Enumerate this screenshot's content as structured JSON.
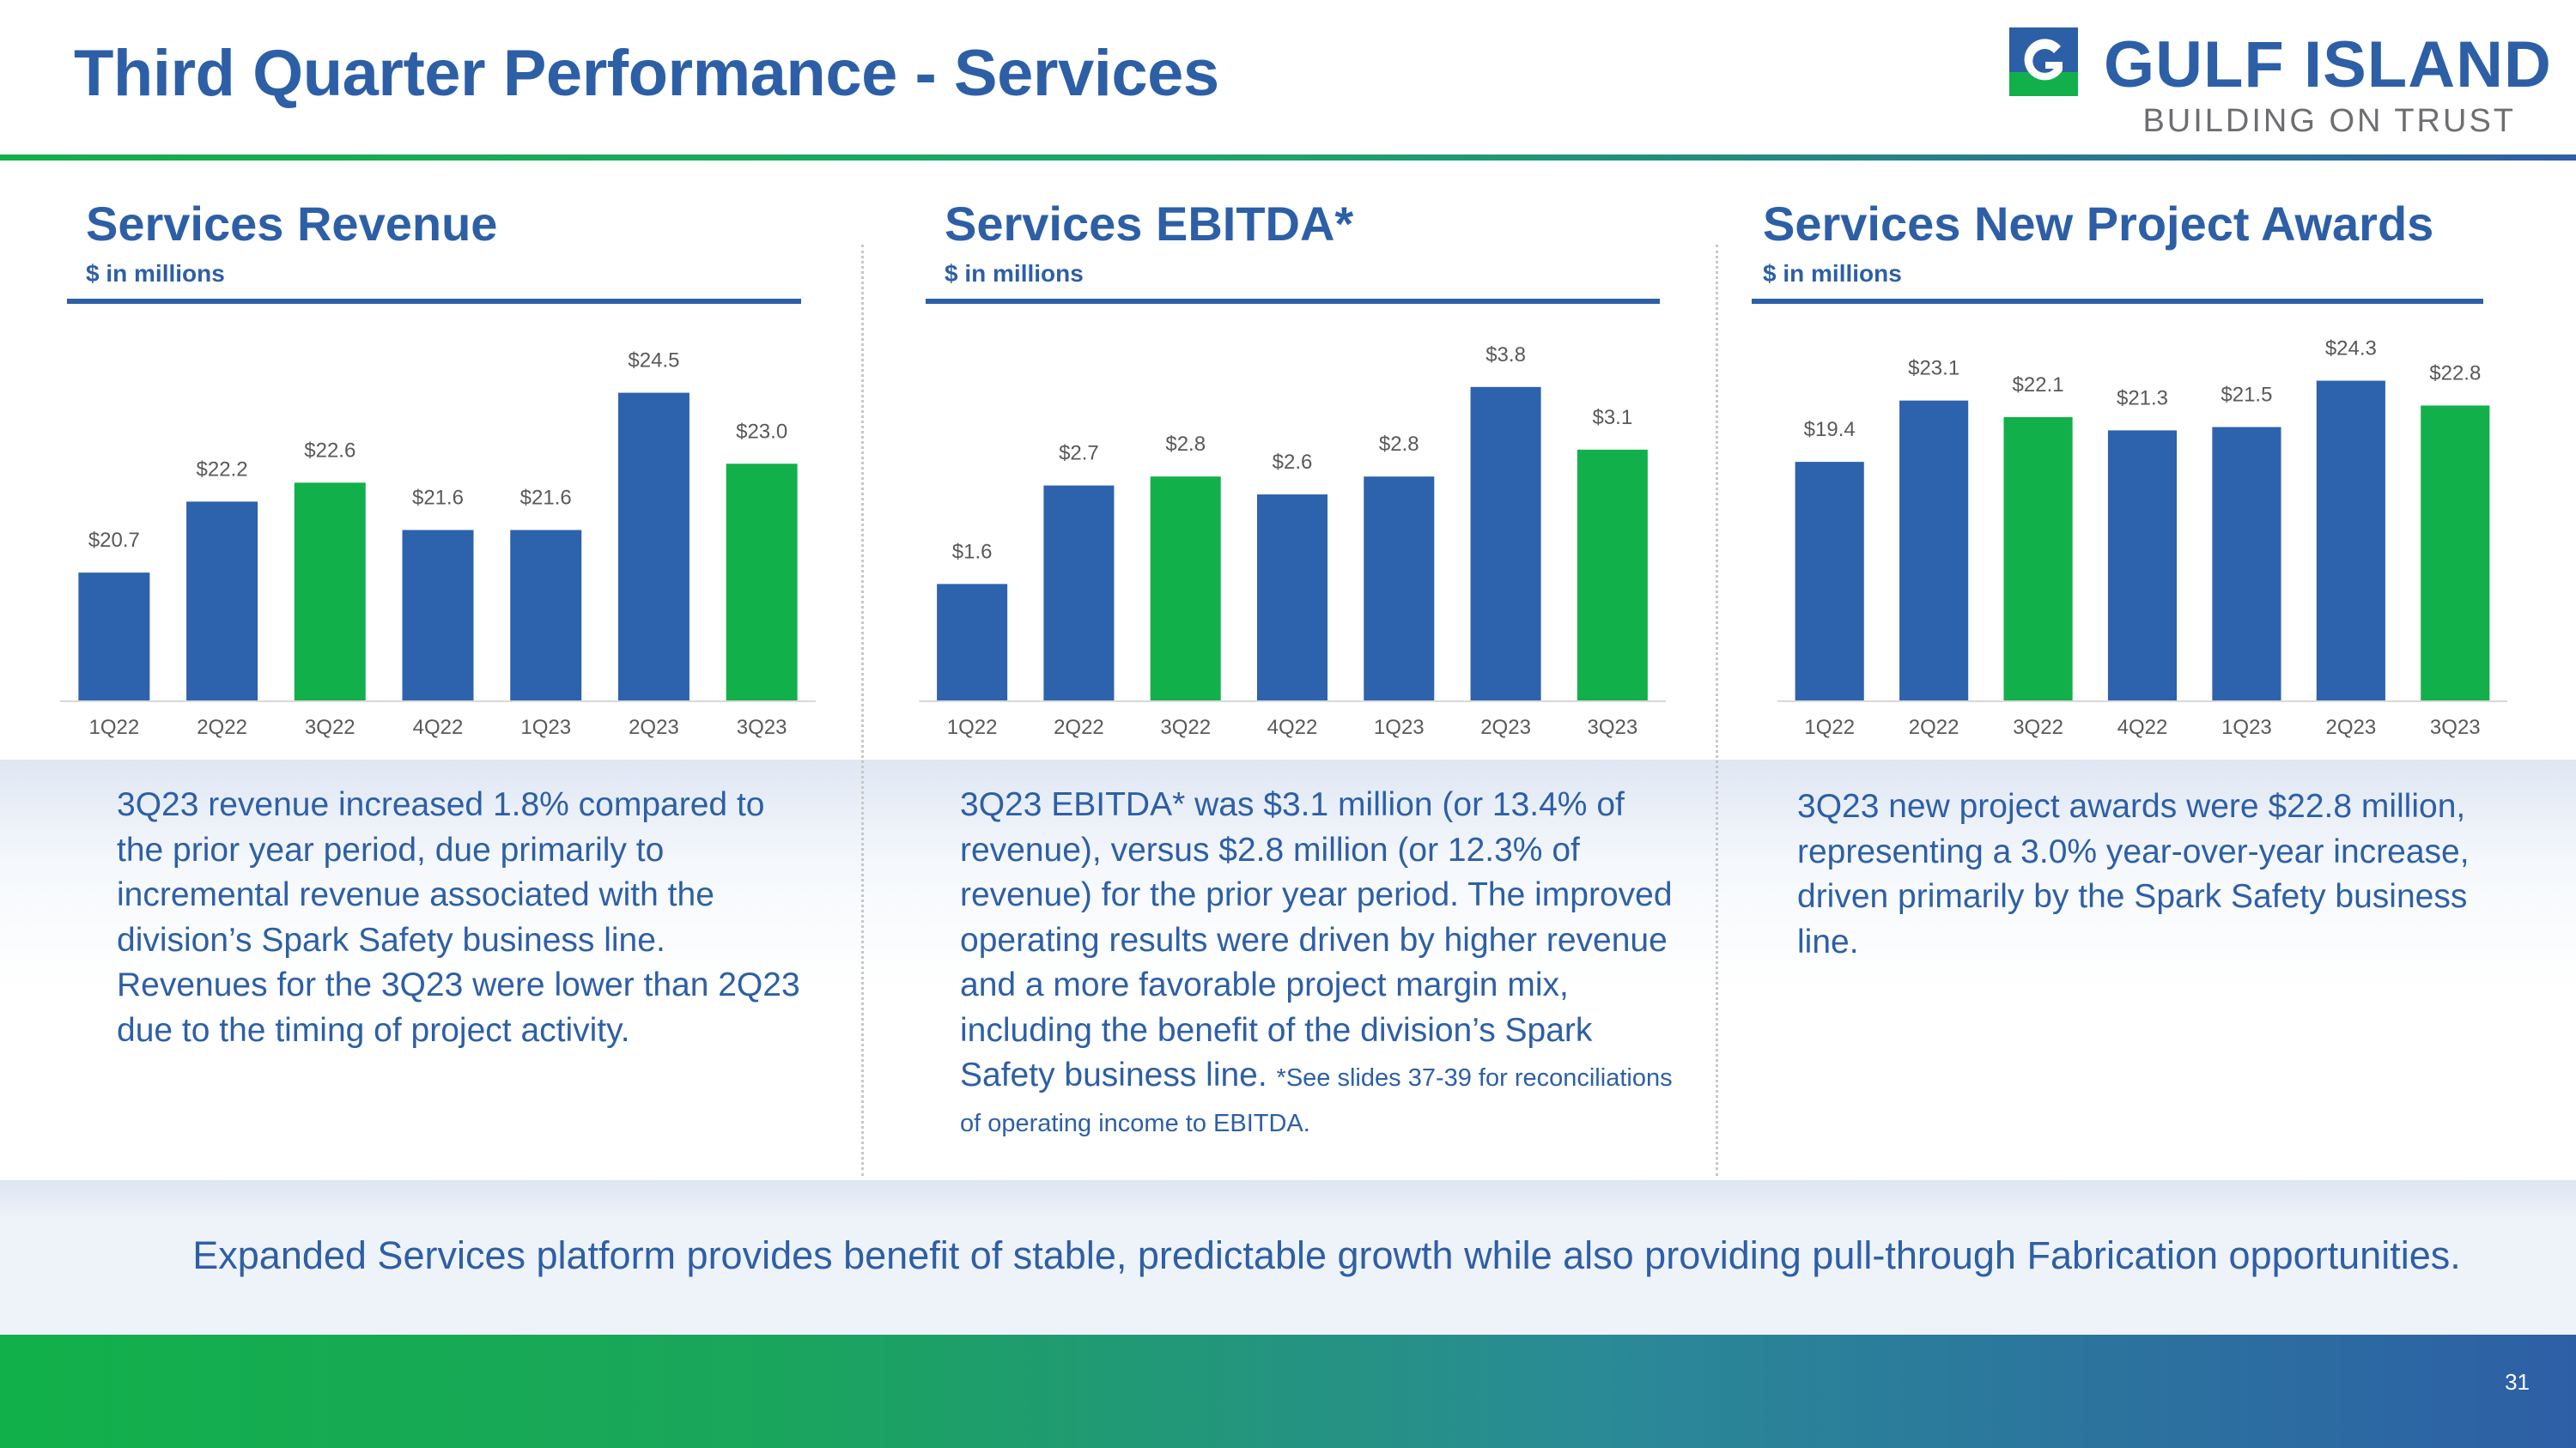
{
  "slide": {
    "title": "Third Quarter Performance - Services",
    "page_number": "31",
    "footer": "Expanded Services platform provides benefit of stable, predictable growth while also providing pull-through Fabrication opportunities."
  },
  "logo": {
    "name": "GULF ISLAND",
    "tagline": "BUILDING ON TRUST"
  },
  "colors": {
    "brand_blue": "#2d5fa6",
    "brand_green": "#12b04a",
    "bar_blue": "#2d62ad",
    "bar_green": "#12b04a"
  },
  "panels": [
    {
      "title": "Services Revenue",
      "subtitle": "$ in millions",
      "text": "3Q23 revenue increased 1.8% compared to the prior year period, due primarily to incremental revenue associated with the division’s Spark Safety business line. Revenues for the 3Q23 were lower than 2Q23 due to the timing of project activity.",
      "note": ""
    },
    {
      "title": "Services EBITDA*",
      "subtitle": "$ in millions",
      "text": "3Q23 EBITDA* was $3.1 million (or 13.4% of revenue), versus $2.8 million (or 12.3% of revenue) for the prior year period. The improved operating results were driven by higher revenue and a more favorable project margin mix, including the benefit of the division’s Spark Safety business line.",
      "note": "*See slides 37-39 for reconciliations of operating income to EBITDA."
    },
    {
      "title": "Services New Project Awards",
      "subtitle": "$ in millions",
      "text": "3Q23 new project awards were $22.8 million, representing a 3.0% year-over-year increase, driven primarily by the Spark Safety business line.",
      "note": ""
    }
  ],
  "chart_data": [
    {
      "type": "bar",
      "title": "Services Revenue",
      "ylabel": "$ in millions",
      "categories": [
        "1Q22",
        "2Q22",
        "3Q22",
        "4Q22",
        "1Q23",
        "2Q23",
        "3Q23"
      ],
      "values": [
        20.7,
        22.2,
        22.6,
        21.6,
        21.6,
        24.5,
        23.0
      ],
      "labels": [
        "$20.7",
        "$22.2",
        "$22.6",
        "$21.6",
        "$21.6",
        "$24.5",
        "$23.0"
      ],
      "highlight": [
        "3Q22",
        "3Q23"
      ],
      "ylim": [
        18.0,
        25.0
      ]
    },
    {
      "type": "bar",
      "title": "Services EBITDA*",
      "ylabel": "$ in millions",
      "categories": [
        "1Q22",
        "2Q22",
        "3Q22",
        "4Q22",
        "1Q23",
        "2Q23",
        "3Q23"
      ],
      "values": [
        1.6,
        2.7,
        2.8,
        2.6,
        2.8,
        3.8,
        3.1
      ],
      "labels": [
        "$1.6",
        "$2.7",
        "$2.8",
        "$2.6",
        "$2.8",
        "$3.8",
        "$3.1"
      ],
      "highlight": [
        "3Q22",
        "3Q23"
      ],
      "ylim": [
        0.3,
        4.0
      ]
    },
    {
      "type": "bar",
      "title": "Services New Project Awards",
      "ylabel": "$ in millions",
      "categories": [
        "1Q22",
        "2Q22",
        "3Q22",
        "4Q22",
        "1Q23",
        "2Q23",
        "3Q23"
      ],
      "values": [
        19.4,
        23.1,
        22.1,
        21.3,
        21.5,
        24.3,
        22.8
      ],
      "labels": [
        "$19.4",
        "$23.1",
        "$22.1",
        "$21.3",
        "$21.5",
        "$24.3",
        "$22.8"
      ],
      "highlight": [
        "3Q22",
        "3Q23"
      ],
      "ylim": [
        5.0,
        25.0
      ]
    }
  ]
}
